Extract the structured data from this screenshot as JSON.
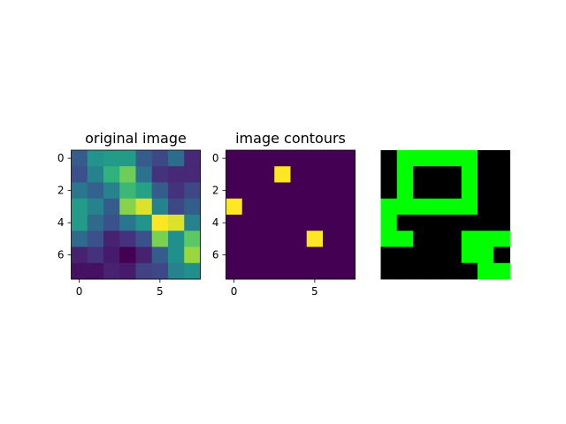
{
  "chart_data": [
    {
      "type": "heatmap",
      "title": "original image",
      "colormap": "viridis",
      "vmin": 0,
      "vmax": 1,
      "grid": false,
      "xticks": [
        0,
        5
      ],
      "yticks": [
        0,
        2,
        4,
        6
      ],
      "values": [
        [
          0.3,
          0.52,
          0.55,
          0.55,
          0.3,
          0.22,
          0.36,
          0.12
        ],
        [
          0.25,
          0.45,
          0.65,
          0.78,
          0.38,
          0.15,
          0.12,
          0.12
        ],
        [
          0.4,
          0.32,
          0.45,
          0.68,
          0.58,
          0.3,
          0.15,
          0.22
        ],
        [
          0.55,
          0.45,
          0.3,
          0.82,
          0.95,
          0.45,
          0.22,
          0.3
        ],
        [
          0.55,
          0.35,
          0.25,
          0.4,
          0.52,
          1.0,
          0.95,
          0.45
        ],
        [
          0.35,
          0.25,
          0.1,
          0.15,
          0.25,
          0.8,
          0.5,
          0.75
        ],
        [
          0.1,
          0.15,
          0.08,
          0.0,
          0.1,
          0.3,
          0.5,
          0.85
        ],
        [
          0.05,
          0.05,
          0.1,
          0.08,
          0.2,
          0.22,
          0.45,
          0.5
        ]
      ]
    },
    {
      "type": "heatmap",
      "title": "image contours",
      "colormap": "viridis",
      "vmin": 0,
      "vmax": 1,
      "grid": false,
      "xticks": [
        0,
        5
      ],
      "yticks": [
        0,
        2,
        4,
        6
      ],
      "values": [
        [
          0,
          0,
          0,
          0,
          0,
          0,
          0,
          0
        ],
        [
          0,
          0,
          0,
          1,
          0,
          0,
          0,
          0
        ],
        [
          0,
          0,
          0,
          0,
          0,
          0,
          0,
          0
        ],
        [
          1,
          0,
          0,
          0,
          0,
          0,
          0,
          0
        ],
        [
          0,
          0,
          0,
          0,
          0,
          0,
          0,
          0
        ],
        [
          0,
          0,
          0,
          0,
          0,
          1,
          0,
          0
        ],
        [
          0,
          0,
          0,
          0,
          0,
          0,
          0,
          0
        ],
        [
          0,
          0,
          0,
          0,
          0,
          0,
          0,
          0
        ]
      ]
    },
    {
      "type": "heatmap",
      "title": "",
      "colors": {
        "0": "#000000",
        "1": "#00ff00"
      },
      "axes_visible": false,
      "values": [
        [
          0,
          1,
          1,
          1,
          1,
          1,
          0,
          0
        ],
        [
          0,
          1,
          0,
          0,
          0,
          1,
          0,
          0
        ],
        [
          0,
          1,
          0,
          0,
          0,
          1,
          0,
          0
        ],
        [
          1,
          1,
          1,
          1,
          1,
          1,
          0,
          0
        ],
        [
          1,
          0,
          0,
          0,
          0,
          0,
          0,
          0
        ],
        [
          1,
          1,
          0,
          0,
          0,
          1,
          1,
          1
        ],
        [
          0,
          0,
          0,
          0,
          0,
          1,
          1,
          0
        ],
        [
          0,
          0,
          0,
          0,
          0,
          0,
          1,
          1
        ]
      ]
    }
  ]
}
